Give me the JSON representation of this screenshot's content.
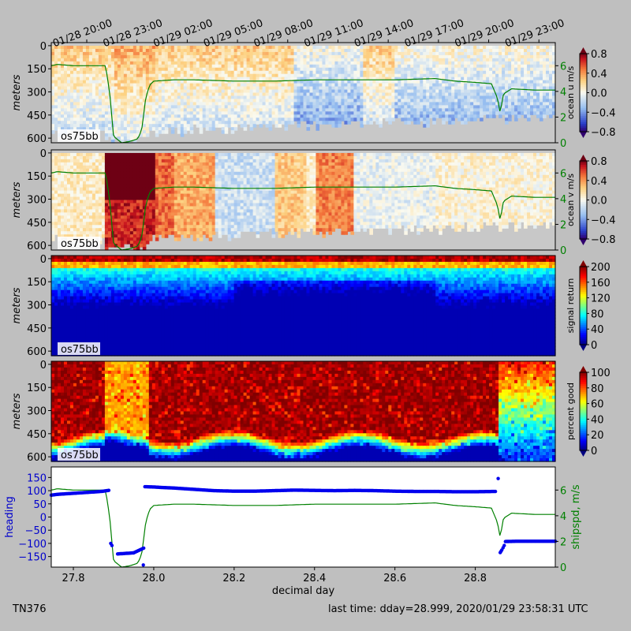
{
  "figure": {
    "cruise": "TN376",
    "last_time": "last time: dday=28.999,  2020/01/29 23:58:31 UTC"
  },
  "chart_data": [
    {
      "type": "heatmap",
      "label": "os75bb",
      "ylabel": "meters",
      "yticks": [
        0,
        150,
        300,
        450,
        600
      ],
      "colorbar": {
        "label": "ocean u m/s",
        "ticks": [
          "0.8",
          "0.4",
          "0.0",
          "−0.4",
          "−0.8"
        ],
        "range": [
          -0.8,
          0.8
        ],
        "cmap": "rdylbu"
      },
      "right_axis": {
        "ticks": [
          0,
          2,
          4,
          6
        ],
        "color": "#008000"
      },
      "date_ticks": [
        "01/28 20:00",
        "01/28 23:00",
        "01/29 02:00",
        "01/29 05:00",
        "01/29 08:00",
        "01/29 11:00",
        "01/29 14:00",
        "01/29 17:00",
        "01/29 20:00",
        "01/29 23:00"
      ]
    },
    {
      "type": "heatmap",
      "label": "os75bb",
      "ylabel": "meters",
      "yticks": [
        0,
        150,
        300,
        450,
        600
      ],
      "colorbar": {
        "label": "ocean v m/s",
        "ticks": [
          "0.8",
          "0.4",
          "0.0",
          "−0.4",
          "−0.8"
        ],
        "range": [
          -0.8,
          0.8
        ],
        "cmap": "rdylbu"
      },
      "right_axis": {
        "ticks": [
          0,
          2,
          4,
          6
        ],
        "color": "#008000"
      }
    },
    {
      "type": "heatmap",
      "label": "os75bb",
      "ylabel": "meters",
      "yticks": [
        0,
        150,
        300,
        450,
        600
      ],
      "colorbar": {
        "label": "signal return",
        "ticks": [
          "200",
          "160",
          "120",
          "80",
          "40",
          "0"
        ],
        "range": [
          0,
          200
        ],
        "cmap": "jet"
      }
    },
    {
      "type": "heatmap",
      "label": "os75bb",
      "ylabel": "meters",
      "yticks": [
        0,
        150,
        300,
        450,
        600
      ],
      "colorbar": {
        "label": "percent good",
        "ticks": [
          "100",
          "80",
          "60",
          "40",
          "20",
          "0"
        ],
        "range": [
          0,
          100
        ],
        "cmap": "jet"
      }
    },
    {
      "type": "scatter",
      "xlabel": "decimal day",
      "xticks": [
        "27.8",
        "28.0",
        "28.2",
        "28.4",
        "28.6",
        "28.8"
      ],
      "xlim": [
        27.745,
        28.999
      ],
      "left_axis": {
        "label": "heading",
        "ticks": [
          "150",
          "100",
          "50",
          "0",
          "−50",
          "−100",
          "−150"
        ],
        "ylim": [
          -190,
          190
        ],
        "color": "#0000cc"
      },
      "right_axis": {
        "label": "shipspd, m/s",
        "ticks": [
          "6",
          "4",
          "2",
          "0"
        ],
        "ylim": [
          0,
          7.8
        ],
        "color": "#008000"
      },
      "heading_points": [
        [
          27.745,
          83
        ],
        [
          27.76,
          86
        ],
        [
          27.78,
          88
        ],
        [
          27.8,
          90
        ],
        [
          27.82,
          92
        ],
        [
          27.84,
          94
        ],
        [
          27.86,
          96
        ],
        [
          27.875,
          98
        ],
        [
          27.888,
          101
        ],
        [
          27.893,
          -100
        ],
        [
          27.896,
          -108
        ],
        [
          27.91,
          -140
        ],
        [
          27.93,
          -138
        ],
        [
          27.95,
          -136
        ],
        [
          27.965,
          -125
        ],
        [
          27.975,
          -118
        ],
        [
          27.974,
          -182
        ],
        [
          27.978,
          115
        ],
        [
          28.0,
          114
        ],
        [
          28.02,
          112
        ],
        [
          28.05,
          110
        ],
        [
          28.1,
          105
        ],
        [
          28.15,
          100
        ],
        [
          28.2,
          98
        ],
        [
          28.25,
          98
        ],
        [
          28.3,
          100
        ],
        [
          28.35,
          102
        ],
        [
          28.4,
          101
        ],
        [
          28.45,
          100
        ],
        [
          28.5,
          101
        ],
        [
          28.55,
          100
        ],
        [
          28.6,
          98
        ],
        [
          28.65,
          97
        ],
        [
          28.7,
          97
        ],
        [
          28.75,
          96
        ],
        [
          28.8,
          96
        ],
        [
          28.85,
          97
        ],
        [
          28.857,
          146
        ],
        [
          28.862,
          -135
        ],
        [
          28.866,
          -125
        ],
        [
          28.872,
          -108
        ],
        [
          28.875,
          -93
        ],
        [
          28.9,
          -92
        ],
        [
          28.95,
          -92
        ],
        [
          28.999,
          -92
        ]
      ],
      "speed_points": [
        [
          27.745,
          6.0
        ],
        [
          27.76,
          6.1
        ],
        [
          27.8,
          6.0
        ],
        [
          27.85,
          6.0
        ],
        [
          27.88,
          6.0
        ],
        [
          27.89,
          4.0
        ],
        [
          27.9,
          0.5
        ],
        [
          27.92,
          0.0
        ],
        [
          27.94,
          0.1
        ],
        [
          27.96,
          0.3
        ],
        [
          27.97,
          1.0
        ],
        [
          27.98,
          3.5
        ],
        [
          27.99,
          4.5
        ],
        [
          28.0,
          4.8
        ],
        [
          28.05,
          4.9
        ],
        [
          28.1,
          4.9
        ],
        [
          28.2,
          4.8
        ],
        [
          28.3,
          4.8
        ],
        [
          28.4,
          4.9
        ],
        [
          28.5,
          4.9
        ],
        [
          28.6,
          4.9
        ],
        [
          28.7,
          5.0
        ],
        [
          28.75,
          4.8
        ],
        [
          28.8,
          4.7
        ],
        [
          28.84,
          4.6
        ],
        [
          28.855,
          3.5
        ],
        [
          28.862,
          2.3
        ],
        [
          28.87,
          3.8
        ],
        [
          28.89,
          4.2
        ],
        [
          28.95,
          4.1
        ],
        [
          28.999,
          4.1
        ]
      ]
    }
  ]
}
